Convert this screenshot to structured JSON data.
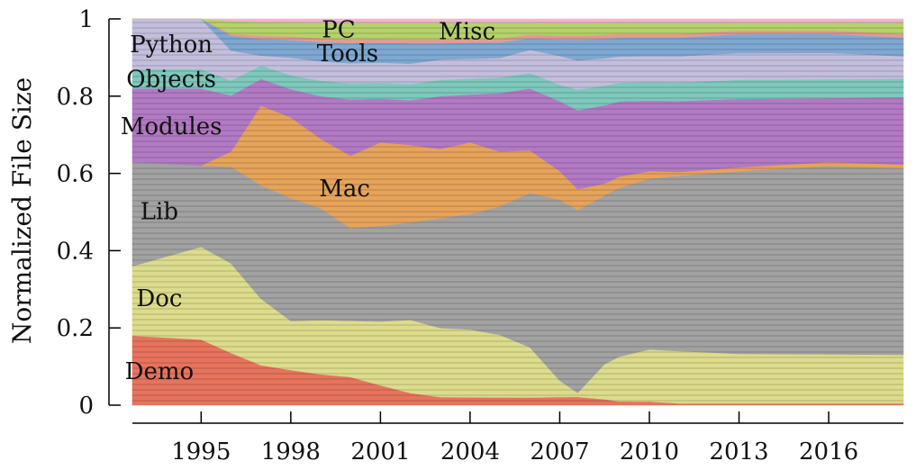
{
  "chart_data": {
    "type": "area",
    "ylabel": "Normalized File Size",
    "ylim": [
      0,
      1
    ],
    "xlim": [
      1992.7,
      2018.5
    ],
    "x_ticks": [
      1995,
      1998,
      2001,
      2004,
      2007,
      2010,
      2013,
      2016
    ],
    "x_tick_labels": [
      "1995",
      "1998",
      "2001",
      "2004",
      "2007",
      "2010",
      "2013",
      "2016"
    ],
    "y_ticks": [
      0,
      0.2,
      0.4,
      0.6,
      0.8,
      1
    ],
    "y_tick_labels": [
      "0",
      "0.2",
      "0.4",
      "0.6",
      "0.8",
      "1"
    ],
    "x": [
      1992.7,
      1995,
      1996,
      1997,
      1998,
      1999,
      2000,
      2001,
      2002,
      2003,
      2004,
      2005,
      2006,
      2007,
      2007.6,
      2008.5,
      2009,
      2010,
      2011,
      2013,
      2016,
      2018.5
    ],
    "series": [
      {
        "name": "Demo",
        "color": "#e7735d",
        "values": [
          0.18,
          0.17,
          0.14,
          0.12,
          0.1,
          0.08,
          0.07,
          0.05,
          0.03,
          0.02,
          0.02,
          0.02,
          0.02,
          0.02,
          0.02,
          0.015,
          0.01,
          0.01,
          0.005,
          0.005,
          0.005,
          0.005
        ]
      },
      {
        "name": "Doc",
        "color": "#dcdc8c",
        "values": [
          0.18,
          0.24,
          0.24,
          0.2,
          0.14,
          0.14,
          0.14,
          0.16,
          0.18,
          0.17,
          0.17,
          0.16,
          0.13,
          0.04,
          0.01,
          0.09,
          0.12,
          0.14,
          0.14,
          0.13,
          0.13,
          0.13
        ]
      },
      {
        "name": "Lib",
        "color": "#a2a2a2",
        "values": [
          0.27,
          0.21,
          0.26,
          0.34,
          0.35,
          0.29,
          0.23,
          0.24,
          0.24,
          0.27,
          0.29,
          0.33,
          0.4,
          0.44,
          0.44,
          0.43,
          0.45,
          0.46,
          0.47,
          0.48,
          0.5,
          0.5
        ]
      },
      {
        "name": "Mac",
        "color": "#e6a35a",
        "values": [
          0,
          0,
          0.04,
          0.24,
          0.23,
          0.18,
          0.18,
          0.21,
          0.19,
          0.17,
          0.18,
          0.14,
          0.11,
          0.07,
          0.05,
          0.03,
          0.03,
          0.02,
          0.01,
          0.01,
          0.01,
          0.01
        ]
      },
      {
        "name": "Modules",
        "color": "#b27ac4",
        "values": [
          0.19,
          0.2,
          0.15,
          0.08,
          0.08,
          0.11,
          0.14,
          0.11,
          0.11,
          0.13,
          0.12,
          0.15,
          0.16,
          0.17,
          0.19,
          0.2,
          0.2,
          0.19,
          0.19,
          0.18,
          0.17,
          0.18
        ]
      },
      {
        "name": "Objects",
        "color": "#7ec8bc",
        "values": [
          0.05,
          0.05,
          0.04,
          0.04,
          0.04,
          0.04,
          0.04,
          0.04,
          0.04,
          0.04,
          0.04,
          0.04,
          0.04,
          0.04,
          0.05,
          0.05,
          0.05,
          0.05,
          0.05,
          0.05,
          0.05,
          0.05
        ]
      },
      {
        "name": "Python",
        "color": "#c4bedd",
        "values": [
          0.13,
          0.13,
          0.08,
          0.03,
          0.05,
          0.05,
          0.05,
          0.05,
          0.05,
          0.05,
          0.05,
          0.05,
          0.06,
          0.07,
          0.07,
          0.07,
          0.07,
          0.07,
          0.07,
          0.07,
          0.07,
          0.06
        ]
      },
      {
        "name": "Tools",
        "color": "#7ea8d2",
        "values": [
          0,
          0,
          0.04,
          0.05,
          0.05,
          0.05,
          0.05,
          0.05,
          0.05,
          0.04,
          0.04,
          0.04,
          0.03,
          0.04,
          0.05,
          0.05,
          0.05,
          0.05,
          0.05,
          0.05,
          0.05,
          0.05
        ]
      },
      {
        "name": "PC",
        "color": "#e29c92",
        "values": [
          0,
          0,
          0.005,
          0.01,
          0.01,
          0.01,
          0.01,
          0.01,
          0.01,
          0.01,
          0.01,
          0.01,
          0.01,
          0.01,
          0.01,
          0.01,
          0.01,
          0.01,
          0.01,
          0.01,
          0.01,
          0.01
        ]
      },
      {
        "name": "Misc",
        "color": "#b5d36a",
        "values": [
          0,
          0,
          0.035,
          0.04,
          0.04,
          0.04,
          0.04,
          0.04,
          0.04,
          0.04,
          0.04,
          0.04,
          0.03,
          0.03,
          0.03,
          0.03,
          0.03,
          0.03,
          0.03,
          0.02,
          0.02,
          0.03
        ]
      },
      {
        "name": "",
        "color": "#eeb6cc",
        "values": [
          0,
          0,
          0.005,
          0.01,
          0.01,
          0.01,
          0.01,
          0.01,
          0.01,
          0.01,
          0.01,
          0.01,
          0.01,
          0.01,
          0.01,
          0.01,
          0.01,
          0.01,
          0.01,
          0.01,
          0.01,
          0.01
        ]
      }
    ],
    "band_labels": [
      {
        "text": "Python",
        "series": "Python"
      },
      {
        "text": "Objects",
        "series": "Objects"
      },
      {
        "text": "Modules",
        "series": "Modules"
      },
      {
        "text": "Lib",
        "series": "Lib"
      },
      {
        "text": "Doc",
        "series": "Doc"
      },
      {
        "text": "Demo",
        "series": "Demo"
      },
      {
        "text": "PC",
        "series": "PC"
      },
      {
        "text": "Tools",
        "series": "Tools"
      },
      {
        "text": "Misc",
        "series": "Misc"
      },
      {
        "text": "Mac",
        "series": "Mac"
      }
    ],
    "grid": false
  }
}
